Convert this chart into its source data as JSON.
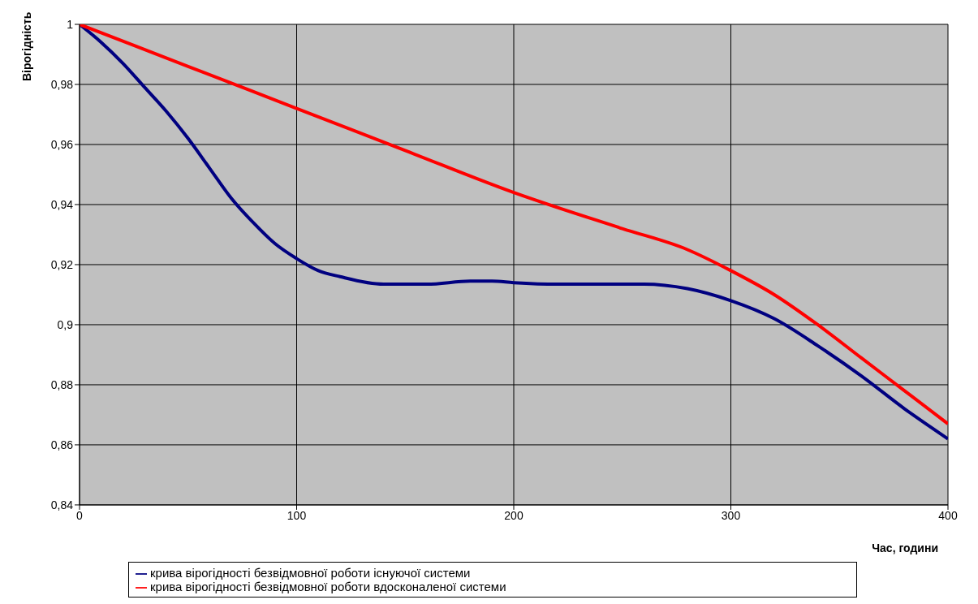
{
  "chart_data": {
    "type": "line",
    "xlabel": "Час, години",
    "ylabel": "Вірогідність",
    "grid": true,
    "legend": "bottom",
    "line_style": "solid",
    "xlim": [
      0,
      400
    ],
    "xticks": [
      0,
      100,
      200,
      300,
      400
    ],
    "ylim": [
      0.84,
      1
    ],
    "yticks": [
      {
        "value": 0.84,
        "label": "0,84"
      },
      {
        "value": 0.86,
        "label": "0,86"
      },
      {
        "value": 0.88,
        "label": "0,88"
      },
      {
        "value": 0.9,
        "label": "0,9"
      },
      {
        "value": 0.92,
        "label": "0,92"
      },
      {
        "value": 0.94,
        "label": "0,94"
      },
      {
        "value": 0.96,
        "label": "0,96"
      },
      {
        "value": 0.98,
        "label": "0,98"
      },
      {
        "value": 1,
        "label": "1"
      }
    ],
    "series": [
      {
        "name": "крива вірогідності безвідмовної роботи існуючої системи",
        "color": "#000080",
        "x": [
          0,
          10,
          20,
          30,
          40,
          50,
          60,
          70,
          80,
          90,
          100,
          110,
          120,
          140,
          160,
          180,
          190,
          200,
          220,
          240,
          260,
          280,
          300,
          320,
          340,
          360,
          380,
          400
        ],
        "values": [
          1,
          0.994,
          0.987,
          0.979,
          0.971,
          0.962,
          0.952,
          0.942,
          0.934,
          0.927,
          0.922,
          0.918,
          0.916,
          0.9135,
          0.9135,
          0.9145,
          0.9145,
          0.914,
          0.9135,
          0.9135,
          0.9135,
          0.912,
          0.908,
          0.902,
          0.893,
          0.883,
          0.872,
          0.862
        ]
      },
      {
        "name": "крива вірогідності безвідмовної роботи вдосконаленої системи",
        "color": "#ff0000",
        "x": [
          0,
          50,
          100,
          150,
          200,
          250,
          280,
          300,
          320,
          340,
          360,
          380,
          400
        ],
        "values": [
          1,
          0.986,
          0.972,
          0.958,
          0.944,
          0.932,
          0.925,
          0.918,
          0.91,
          0.9,
          0.889,
          0.878,
          0.867
        ]
      }
    ]
  }
}
